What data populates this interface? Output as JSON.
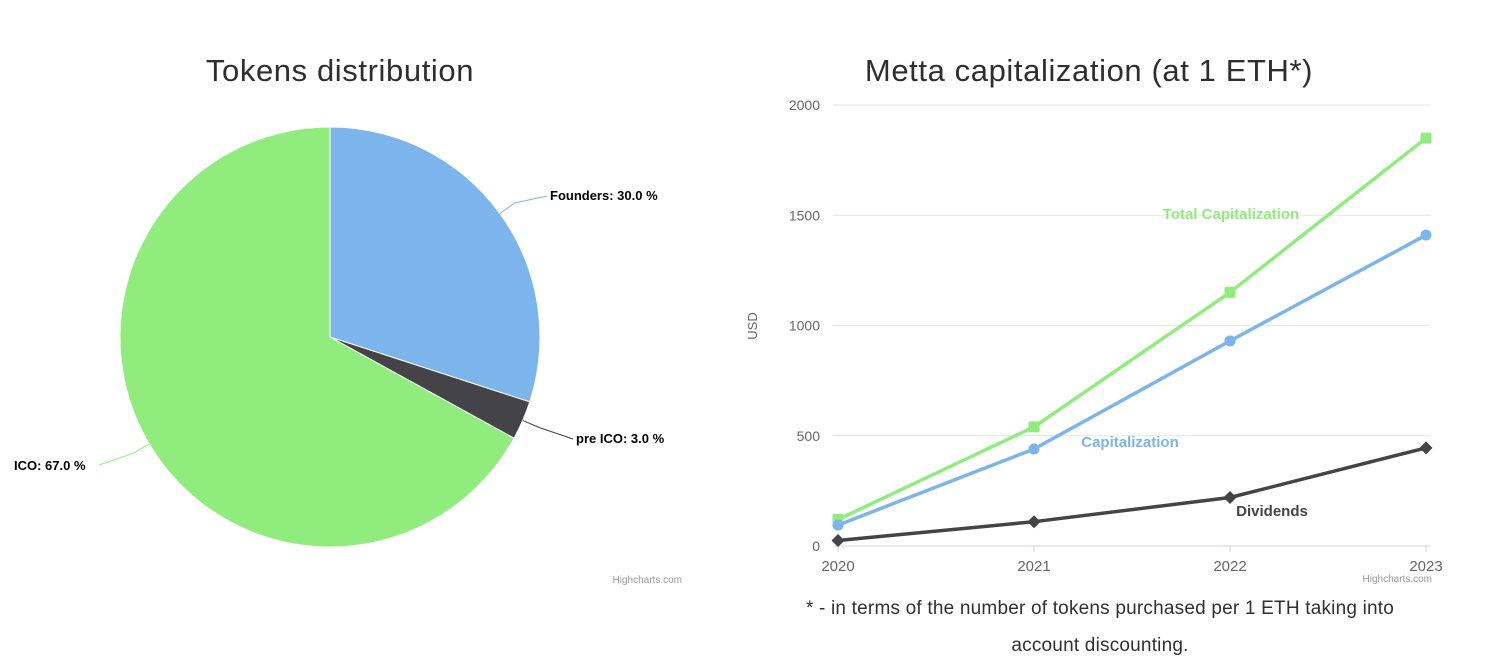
{
  "credits": {
    "label": "Highcharts.com"
  },
  "colors": {
    "blue": "#7cb5ec",
    "dark": "#434348",
    "green": "#90ed7d",
    "grid": "#e6e6e6",
    "axis_line": "#ccd6eb",
    "axis_text": "#666666",
    "credits_text": "#999999"
  },
  "chart_data": [
    {
      "type": "pie",
      "title": "Tokens distribution",
      "start_angle_deg": 0,
      "direction": "clockwise",
      "slices": [
        {
          "name": "Founders",
          "value": 30.0,
          "label": "Founders: 30.0 %",
          "color": "#7cb5ec"
        },
        {
          "name": "pre ICO",
          "value": 3.0,
          "label": "pre ICO: 3.0 %",
          "color": "#434348"
        },
        {
          "name": "ICO",
          "value": 67.0,
          "label": "ICO: 67.0 %",
          "color": "#90ed7d"
        }
      ]
    },
    {
      "type": "line",
      "title": "Metta capitalization (at 1 ETH*)",
      "categories": [
        "2020",
        "2021",
        "2022",
        "2023"
      ],
      "ylabel": "USD",
      "ylim": [
        0,
        2000
      ],
      "yticks": [
        0,
        500,
        1000,
        1500,
        2000
      ],
      "grid": true,
      "legend": "inline series labels",
      "series": [
        {
          "name": "Total Capitalization",
          "color": "#90ed7d",
          "marker": "square",
          "values": [
            120,
            540,
            1150,
            1850
          ]
        },
        {
          "name": "Capitalization",
          "color": "#7cb5ec",
          "marker": "circle",
          "values": [
            95,
            440,
            930,
            1410
          ]
        },
        {
          "name": "Dividends",
          "color": "#434348",
          "marker": "diamond",
          "values": [
            25,
            110,
            220,
            445
          ]
        }
      ],
      "footnote_lines": [
        "* - in terms of the number of tokens purchased per 1 ETH taking into",
        "account discounting."
      ]
    }
  ]
}
